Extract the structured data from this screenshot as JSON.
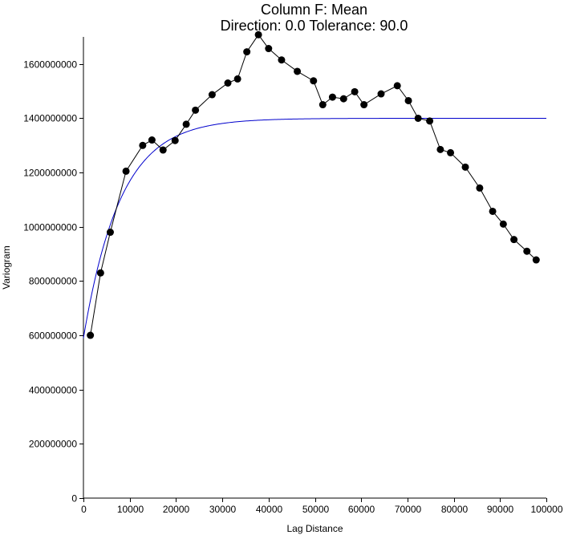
{
  "chart_data": {
    "type": "line",
    "title": "Column F:  Mean",
    "subtitle": "Direction: 0.0   Tolerance: 90.0",
    "xlabel": "Lag Distance",
    "ylabel": "Variogram",
    "xlim": [
      0,
      100000
    ],
    "ylim": [
      0,
      1700000000
    ],
    "x_ticks": [
      0,
      10000,
      20000,
      30000,
      40000,
      50000,
      60000,
      70000,
      80000,
      90000,
      100000
    ],
    "y_ticks": [
      0,
      200000000,
      400000000,
      600000000,
      800000000,
      1000000000,
      1200000000,
      1400000000,
      1600000000
    ],
    "grid": false,
    "series": [
      {
        "kind": "experimental",
        "color": "#000000",
        "x": [
          1500,
          3700,
          5800,
          9200,
          12800,
          14800,
          17200,
          19800,
          22200,
          24200,
          27800,
          31200,
          33300,
          35300,
          37800,
          40000,
          42800,
          46200,
          49700,
          51700,
          53800,
          56200,
          58600,
          60600,
          64300,
          67800,
          70200,
          72300,
          74800,
          77100,
          79300,
          82500,
          85600,
          88400,
          90700,
          93000,
          95800,
          97800
        ],
        "y": [
          600000000,
          830000000,
          980000000,
          1205000000,
          1300000000,
          1320000000,
          1283000000,
          1318000000,
          1378000000,
          1430000000,
          1487000000,
          1530000000,
          1545000000,
          1645000000,
          1708000000,
          1657000000,
          1615000000,
          1573000000,
          1538000000,
          1450000000,
          1478000000,
          1472000000,
          1498000000,
          1450000000,
          1490000000,
          1520000000,
          1465000000,
          1400000000,
          1390000000,
          1285000000,
          1273000000,
          1220000000,
          1143000000,
          1057000000,
          1010000000,
          953000000,
          910000000,
          878000000
        ]
      },
      {
        "kind": "model",
        "color": "#0000cc",
        "nugget": 590000000,
        "sill": 1400000000,
        "range": 24000,
        "model": "exponential",
        "x_max": 100000
      }
    ]
  }
}
